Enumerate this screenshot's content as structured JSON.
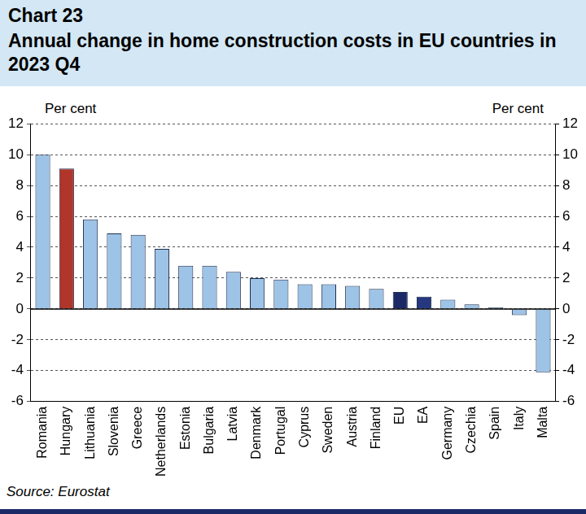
{
  "chart_data": {
    "type": "bar",
    "title": "Chart 23",
    "subtitle": "Annual change in home construction costs in EU countries in 2023 Q4",
    "ylabel": "Per cent",
    "y2label": "Per cent",
    "source": "Source: Eurostat",
    "categories": [
      "Romania",
      "Hungary",
      "Lithuania",
      "Slovenia",
      "Greece",
      "Netherlands",
      "Estonia",
      "Bulgaria",
      "Latvia",
      "Denmark",
      "Portugal",
      "Cyprus",
      "Sweden",
      "Austria",
      "Finland",
      "EU",
      "EA",
      "Germany",
      "Czechia",
      "Spain",
      "Italy",
      "Malta"
    ],
    "values": [
      10.0,
      9.1,
      5.8,
      4.9,
      4.8,
      3.9,
      2.8,
      2.8,
      2.4,
      2.0,
      1.9,
      1.6,
      1.6,
      1.5,
      1.3,
      1.1,
      0.8,
      0.6,
      0.3,
      0.1,
      -0.4,
      -4.1
    ],
    "colors": [
      "#9dc3e6",
      "#b0352b",
      "#9dc3e6",
      "#9dc3e6",
      "#9dc3e6",
      "#9dc3e6",
      "#9dc3e6",
      "#9dc3e6",
      "#9dc3e6",
      "#9dc3e6",
      "#9dc3e6",
      "#9dc3e6",
      "#9dc3e6",
      "#9dc3e6",
      "#9dc3e6",
      "#1b2a66",
      "#26397f",
      "#9dc3e6",
      "#9dc3e6",
      "#9dc3e6",
      "#9dc3e6",
      "#9dc3e6"
    ],
    "ylim": [
      -6,
      12
    ],
    "yticks": [
      -6,
      -4,
      -2,
      0,
      2,
      4,
      6,
      8,
      10,
      12
    ],
    "y2lim": [
      -6,
      12
    ],
    "y2ticks": [
      -6,
      -4,
      -2,
      0,
      2,
      4,
      6,
      8,
      10,
      12
    ],
    "grid": true
  }
}
